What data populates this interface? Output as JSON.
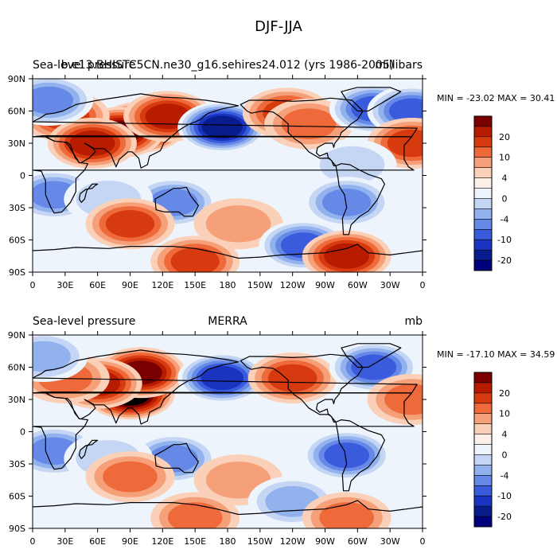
{
  "figure": {
    "title": "DJF-JJA"
  },
  "colorbar_levels": [
    "20",
    "10",
    "4",
    "0",
    "-4",
    "-10",
    "-20"
  ],
  "colorbar_colors": [
    "#7a0000",
    "#b81c00",
    "#d83a10",
    "#ee6a3a",
    "#f6a07a",
    "#fbd0b8",
    "#fdf0e8",
    "#eef4fc",
    "#c4d6f4",
    "#92b2ee",
    "#6688e6",
    "#3a5cdc",
    "#1a34c0",
    "#081c8c",
    "#00007a"
  ],
  "panels": [
    {
      "left_title": "Sea-level pressure",
      "center_title": "b.e13.BHISTC5CN.ne30_g16.sehires24.012 (yrs 1986-2005)",
      "right_title": "millibars",
      "stats": "MIN = -23.02 MAX =  30.41",
      "fields": [
        {
          "lon": 100,
          "lat": 45,
          "value": 26
        },
        {
          "lon": 80,
          "lat": 40,
          "value": 18
        },
        {
          "lon": 125,
          "lat": 55,
          "value": 10
        },
        {
          "lon": 30,
          "lat": 55,
          "value": 8
        },
        {
          "lon": 55,
          "lat": 30,
          "value": 10
        },
        {
          "lon": 175,
          "lat": 45,
          "value": -20
        },
        {
          "lon": 235,
          "lat": 58,
          "value": 8
        },
        {
          "lon": 255,
          "lat": 48,
          "value": 6
        },
        {
          "lon": 315,
          "lat": 62,
          "value": -14
        },
        {
          "lon": 350,
          "lat": 60,
          "value": -10
        },
        {
          "lon": 15,
          "lat": 70,
          "value": -8
        },
        {
          "lon": 350,
          "lat": 30,
          "value": 8
        },
        {
          "lon": 295,
          "lat": 10,
          "value": -4
        },
        {
          "lon": 20,
          "lat": -18,
          "value": -8
        },
        {
          "lon": 130,
          "lat": -25,
          "value": -9
        },
        {
          "lon": 290,
          "lat": -25,
          "value": -8
        },
        {
          "lon": 70,
          "lat": -22,
          "value": -4
        },
        {
          "lon": 90,
          "lat": -45,
          "value": 8
        },
        {
          "lon": 190,
          "lat": -45,
          "value": 4
        },
        {
          "lon": 250,
          "lat": -65,
          "value": -10
        },
        {
          "lon": 290,
          "lat": -75,
          "value": 10
        },
        {
          "lon": 150,
          "lat": -80,
          "value": 8
        }
      ]
    },
    {
      "left_title": "Sea-level pressure",
      "center_title": "MERRA",
      "right_title": "mb",
      "stats": "MIN = -17.10 MAX =  34.59",
      "fields": [
        {
          "lon": 90,
          "lat": 35,
          "value": 28
        },
        {
          "lon": 100,
          "lat": 55,
          "value": 16
        },
        {
          "lon": 60,
          "lat": 45,
          "value": 12
        },
        {
          "lon": 30,
          "lat": 50,
          "value": 6
        },
        {
          "lon": 175,
          "lat": 50,
          "value": -18
        },
        {
          "lon": 240,
          "lat": 50,
          "value": 8
        },
        {
          "lon": 315,
          "lat": 60,
          "value": -12
        },
        {
          "lon": 10,
          "lat": 70,
          "value": -6
        },
        {
          "lon": 350,
          "lat": 30,
          "value": 6
        },
        {
          "lon": 20,
          "lat": -18,
          "value": -8
        },
        {
          "lon": 130,
          "lat": -25,
          "value": -8
        },
        {
          "lon": 290,
          "lat": -22,
          "value": -10
        },
        {
          "lon": 70,
          "lat": -25,
          "value": -4
        },
        {
          "lon": 90,
          "lat": -42,
          "value": 7
        },
        {
          "lon": 190,
          "lat": -45,
          "value": 4
        },
        {
          "lon": 240,
          "lat": -65,
          "value": -6
        },
        {
          "lon": 290,
          "lat": -80,
          "value": 6
        },
        {
          "lon": 150,
          "lat": -80,
          "value": 6
        }
      ]
    }
  ],
  "lon_ticks": [
    "0",
    "30E",
    "60E",
    "90E",
    "120E",
    "150E",
    "180",
    "150W",
    "120W",
    "90W",
    "60W",
    "30W",
    "0"
  ],
  "lat_ticks": [
    "90N",
    "60N",
    "30N",
    "0",
    "30S",
    "60S",
    "90S"
  ],
  "contour_levels": [
    -20,
    -15,
    -10,
    -8,
    -6,
    -4,
    -2,
    0,
    2,
    4,
    6,
    8,
    10,
    15,
    20
  ]
}
